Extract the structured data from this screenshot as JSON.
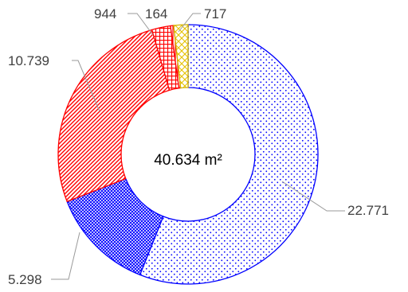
{
  "chart_data": {
    "type": "pie",
    "variant": "donut",
    "center_label": "40.634 m²",
    "slices": [
      {
        "value": 22771,
        "label": "22.771",
        "color": "#0000ff",
        "pattern": "dots"
      },
      {
        "value": 5298,
        "label": "5.298",
        "color": "#0000ff",
        "pattern": "crosshatch-dense"
      },
      {
        "value": 10739,
        "label": "10.739",
        "color": "#ff0000",
        "pattern": "diagonal-stripes"
      },
      {
        "value": 944,
        "label": "944",
        "color": "#ff0000",
        "pattern": "grid"
      },
      {
        "value": 164,
        "label": "164",
        "color": "#ff0000",
        "pattern": "vertical-lines"
      },
      {
        "value": 717,
        "label": "717",
        "color": "#ffd800",
        "pattern": "diamond-lattice"
      }
    ]
  }
}
